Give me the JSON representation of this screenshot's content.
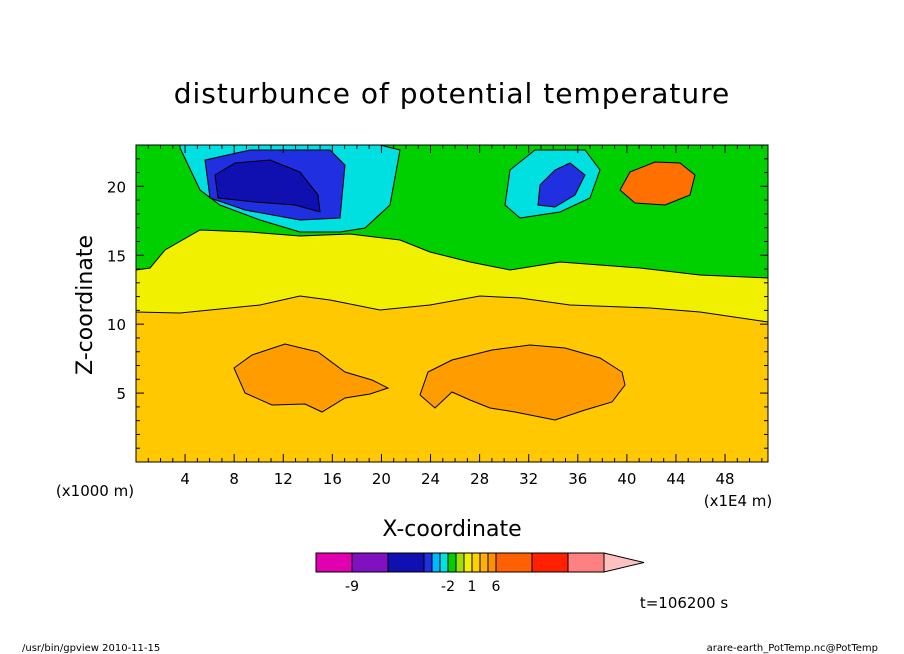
{
  "chart_data": {
    "type": "heatmap",
    "title": "disturbunce of potential temperature",
    "xlabel": "X-coordinate",
    "ylabel": "Z-coordinate",
    "x_unit_left": "(x1000 m)",
    "x_unit_right": "(x1E4 m)",
    "xlim": [
      0,
      51.5
    ],
    "ylim": [
      0,
      23
    ],
    "x_ticks": [
      4,
      8,
      12,
      16,
      20,
      24,
      28,
      32,
      36,
      40,
      44,
      48
    ],
    "y_ticks": [
      5,
      10,
      15,
      20
    ],
    "colorbar": {
      "labels": [
        "-9",
        "-2",
        "1",
        "6"
      ],
      "colors": [
        "#e000b0",
        "#8010c0",
        "#1010b0",
        "#2030e0",
        "#00b8ff",
        "#00e0e0",
        "#00d000",
        "#a0e000",
        "#f0f000",
        "#ffd000",
        "#ffb000",
        "#ff9000",
        "#ff6000",
        "#ff2000",
        "#ff8080",
        "#ffc0c0"
      ]
    },
    "regions": [
      {
        "name": "background",
        "color": "#ffc800"
      },
      {
        "name": "upper-yellow-band",
        "color": "#f0f000"
      },
      {
        "name": "green-band",
        "color": "#00d000"
      },
      {
        "name": "cyan-top-left",
        "color": "#00e0e0"
      },
      {
        "name": "blue-low-center",
        "color": "#2030e0"
      },
      {
        "name": "darkblue-core",
        "color": "#1010b0"
      },
      {
        "name": "cyan-mid",
        "color": "#00e0e0"
      },
      {
        "name": "blue-mid",
        "color": "#2030e0"
      },
      {
        "name": "orange-blob-left",
        "color": "#ff9c00"
      },
      {
        "name": "orange-blob-right",
        "color": "#ff9c00"
      },
      {
        "name": "red-orange-core",
        "color": "#ff7000"
      }
    ],
    "time_label": "t=106200 s"
  },
  "footer": {
    "left": "/usr/bin/gpview   2010-11-15",
    "right": "arare-earth_PotTemp.nc@PotTemp"
  }
}
